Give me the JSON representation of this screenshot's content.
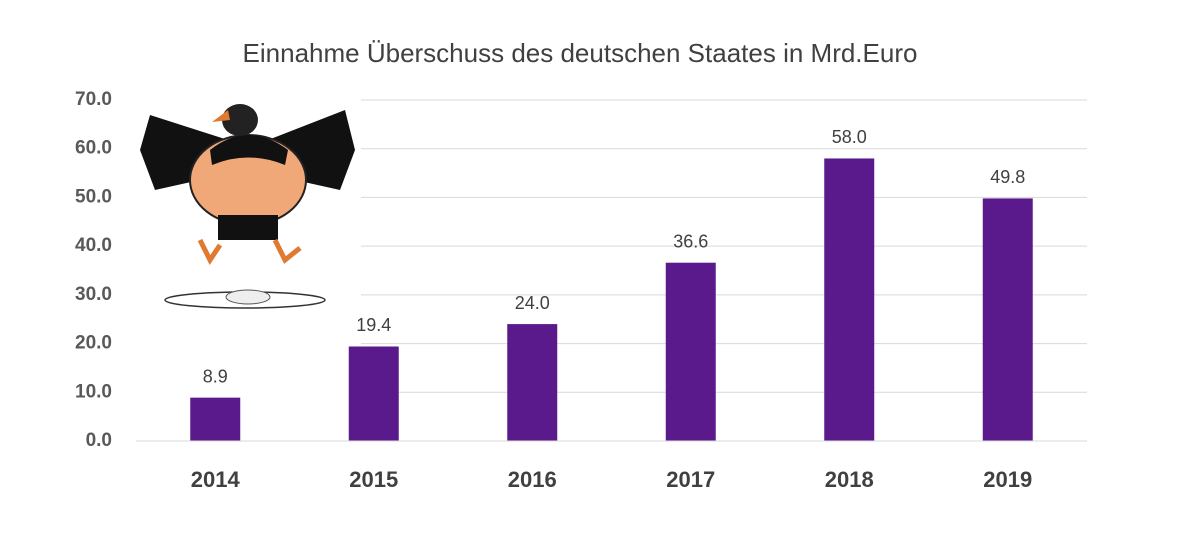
{
  "chart_data": {
    "type": "bar",
    "title": "Einnahme Überschuss des deutschen Staates in Mrd.Euro",
    "categories": [
      "2014",
      "2015",
      "2016",
      "2017",
      "2018",
      "2019"
    ],
    "values": [
      8.9,
      19.4,
      24.0,
      36.6,
      58.0,
      49.8
    ],
    "value_labels": [
      "8.9",
      "19.4",
      "24.0",
      "36.6",
      "58.0",
      "49.8"
    ],
    "color": "#5b1a8c",
    "ylim": [
      0,
      70
    ],
    "yticks": [
      {
        "value": 0,
        "label": "0.0"
      },
      {
        "value": 10,
        "label": "10.0"
      },
      {
        "value": 20,
        "label": "20.0"
      },
      {
        "value": 30,
        "label": "30.0"
      },
      {
        "value": 40,
        "label": "40.0"
      },
      {
        "value": 50,
        "label": "50.0"
      },
      {
        "value": 60,
        "label": "60.0"
      },
      {
        "value": 70,
        "label": "70.0"
      }
    ],
    "grid": true
  }
}
